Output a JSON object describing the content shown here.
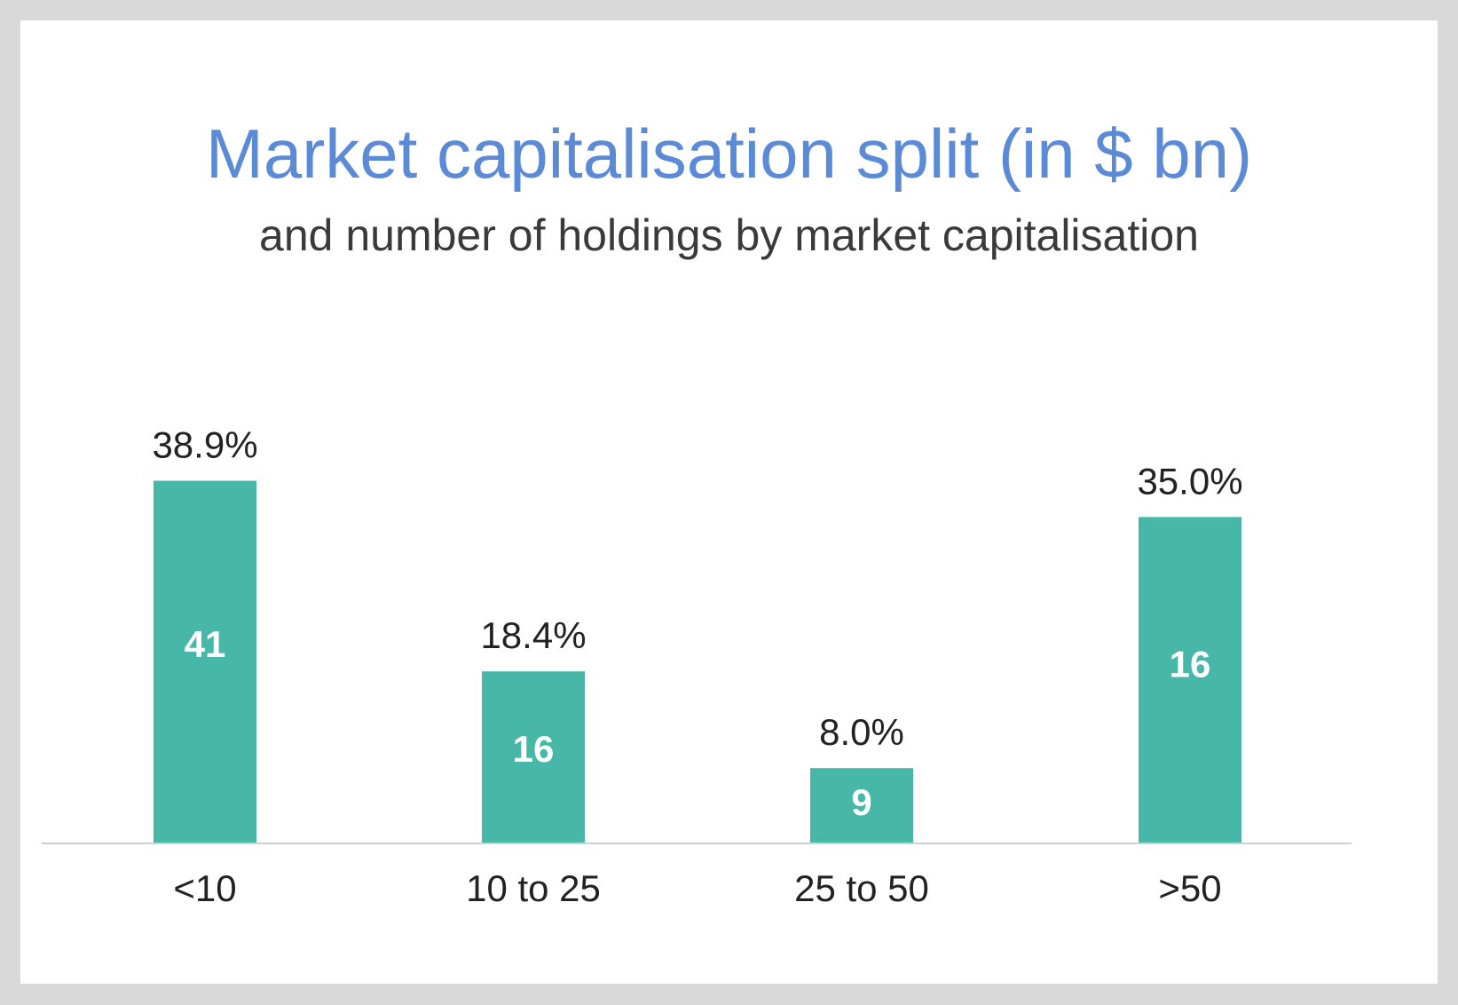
{
  "chart_data": {
    "type": "bar",
    "title": "Market capitalisation split (in $ bn)",
    "subtitle": "and number of holdings by market capitalisation",
    "categories": [
      "<10",
      "10 to 25",
      "25 to 50",
      ">50"
    ],
    "values": [
      38.9,
      18.4,
      8.0,
      35.0
    ],
    "value_labels": [
      "38.9%",
      "18.4%",
      "8.0%",
      "35.0%"
    ],
    "holdings": [
      "41",
      "16",
      "9",
      "16"
    ],
    "ylim": [
      0,
      42
    ],
    "grid": false,
    "bar_color": "#47b8a8",
    "title_color": "#5b8ad6"
  }
}
